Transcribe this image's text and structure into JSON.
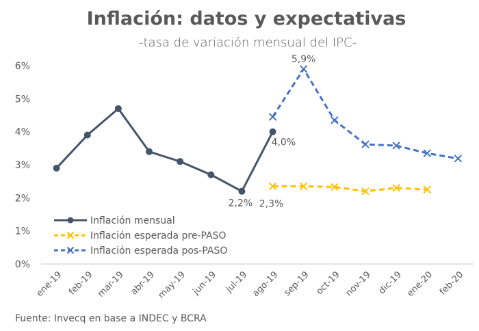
{
  "chart_data": {
    "type": "line",
    "title": "Inflación: datos y expectativas",
    "subtitle": "-tasa de variación mensual del IPC-",
    "xlabel": "",
    "ylabel": "",
    "categories": [
      "ene-19",
      "feb-19",
      "mar-19",
      "abr-19",
      "may-19",
      "jun-19",
      "jul-19",
      "ago-19",
      "sep-19",
      "oct-19",
      "nov-19",
      "dic-19",
      "ene-20",
      "feb-20"
    ],
    "ylim": [
      0,
      6
    ],
    "yticks": [
      0,
      1,
      2,
      3,
      4,
      5,
      6
    ],
    "ytick_labels": [
      "0%",
      "1%",
      "2%",
      "3%",
      "4%",
      "5%",
      "6%"
    ],
    "grid": false,
    "legend_position": "bottom-left",
    "series": [
      {
        "name": "Inflación mensual",
        "color": "#44546A",
        "style": "solid",
        "marker": "circle",
        "values": [
          2.9,
          3.9,
          4.7,
          3.4,
          3.1,
          2.7,
          2.2,
          4.0,
          null,
          null,
          null,
          null,
          null,
          null
        ]
      },
      {
        "name": "Inflación esperada pre-PASO",
        "color": "#FFC000",
        "style": "dashed",
        "marker": "x",
        "values": [
          null,
          null,
          null,
          null,
          null,
          null,
          null,
          2.35,
          2.35,
          2.33,
          2.2,
          2.3,
          2.25,
          null
        ]
      },
      {
        "name": "Inflación esperada pos-PASO",
        "color": "#4472C4",
        "style": "dashed",
        "marker": "x",
        "values": [
          null,
          null,
          null,
          null,
          null,
          null,
          null,
          4.45,
          5.9,
          4.35,
          3.62,
          3.58,
          3.35,
          3.19
        ]
      }
    ],
    "annotations": [
      {
        "text": "5,9%",
        "category": "sep-19",
        "series": "Inflación esperada pos-PASO"
      },
      {
        "text": "4,0%",
        "category": "ago-19",
        "series": "Inflación mensual"
      },
      {
        "text": "2,2%",
        "category": "jul-19",
        "series": "Inflación mensual"
      },
      {
        "text": "2,3%",
        "category": "ago-19",
        "series": "Inflación esperada pre-PASO"
      }
    ],
    "source": "Fuente: Invecq en base a INDEC y BCRA"
  }
}
